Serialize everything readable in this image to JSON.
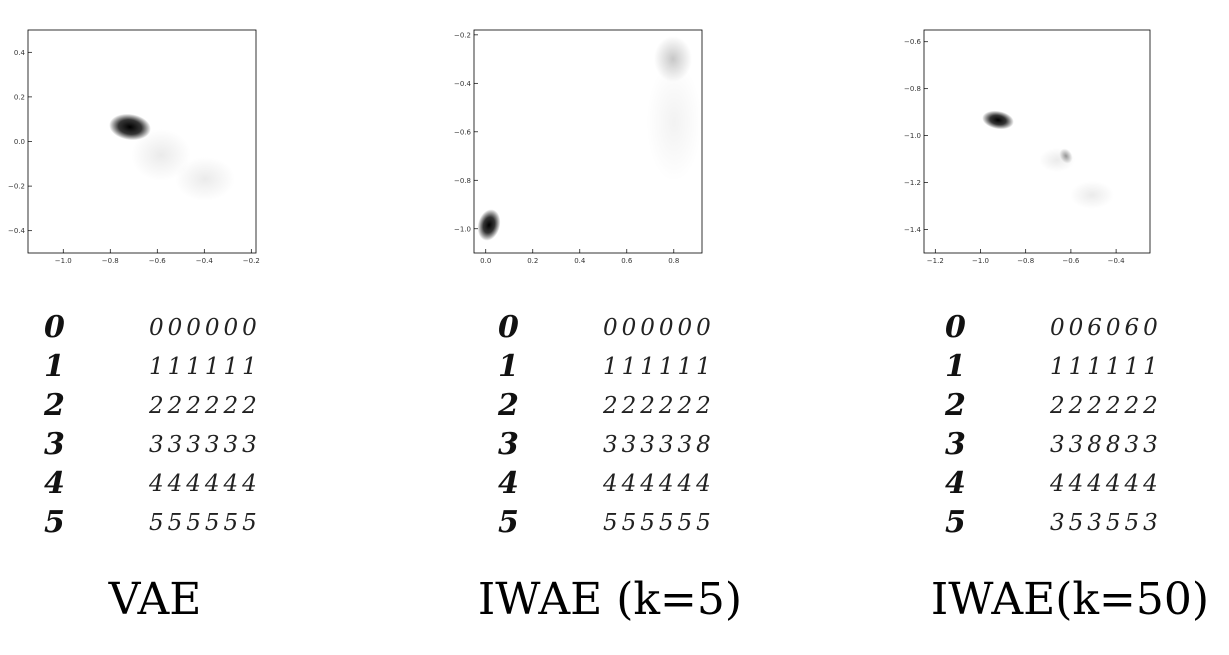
{
  "panels": [
    {
      "caption": "VAE",
      "plot": {
        "type": "heatmap",
        "x_ticks": [
          "-1.0",
          "-0.8",
          "-0.6",
          "-0.4",
          "-0.2"
        ],
        "y_ticks": [
          "0.4",
          "0.2",
          "0.0",
          "-0.2",
          "-0.4"
        ],
        "xlim": [
          -1.15,
          -0.18
        ],
        "ylim": [
          -0.5,
          0.5
        ]
      },
      "digits": [
        {
          "input": "0",
          "recon": "000000"
        },
        {
          "input": "1",
          "recon": "111111"
        },
        {
          "input": "2",
          "recon": "222222"
        },
        {
          "input": "3",
          "recon": "333333"
        },
        {
          "input": "4",
          "recon": "444444"
        },
        {
          "input": "5",
          "recon": "555555"
        }
      ]
    },
    {
      "caption": "IWAE (k=5)",
      "plot": {
        "type": "heatmap",
        "x_ticks": [
          "0.0",
          "0.2",
          "0.4",
          "0.6",
          "0.8"
        ],
        "y_ticks": [
          "-0.2",
          "-0.4",
          "-0.6",
          "-0.8",
          "-1.0"
        ],
        "xlim": [
          -0.05,
          0.92
        ],
        "ylim": [
          -1.1,
          -0.18
        ]
      },
      "digits": [
        {
          "input": "0",
          "recon": "000000"
        },
        {
          "input": "1",
          "recon": "111111"
        },
        {
          "input": "2",
          "recon": "222222"
        },
        {
          "input": "3",
          "recon": "333338"
        },
        {
          "input": "4",
          "recon": "444444"
        },
        {
          "input": "5",
          "recon": "555555"
        }
      ]
    },
    {
      "caption": "IWAE(k=50)",
      "plot": {
        "type": "heatmap",
        "x_ticks": [
          "-1.2",
          "-1.0",
          "-0.8",
          "-0.6",
          "-0.4"
        ],
        "y_ticks": [
          "-0.6",
          "-0.8",
          "-1.0",
          "-1.2",
          "-1.4"
        ],
        "xlim": [
          -1.25,
          -0.25
        ],
        "ylim": [
          -1.5,
          -0.55
        ]
      },
      "digits": [
        {
          "input": "0",
          "recon": "006060"
        },
        {
          "input": "1",
          "recon": "111111"
        },
        {
          "input": "2",
          "recon": "222222"
        },
        {
          "input": "3",
          "recon": "338833"
        },
        {
          "input": "4",
          "recon": "444444"
        },
        {
          "input": "5",
          "recon": "353553"
        }
      ]
    }
  ]
}
